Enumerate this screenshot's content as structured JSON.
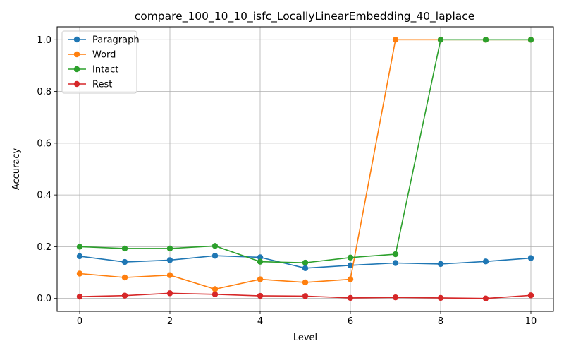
{
  "chart_data": {
    "type": "line",
    "title": "compare_100_10_10_isfc_LocallyLinearEmbedding_40_laplace",
    "xlabel": "Level",
    "ylabel": "Accuracy",
    "x": [
      0,
      1,
      2,
      3,
      4,
      5,
      6,
      7,
      8,
      9,
      10
    ],
    "xlim": [
      -0.5,
      10.5
    ],
    "ylim": [
      -0.05,
      1.05
    ],
    "xticks": [
      0,
      2,
      4,
      6,
      8,
      10
    ],
    "yticks": [
      0.0,
      0.2,
      0.4,
      0.6,
      0.8,
      1.0
    ],
    "xtick_labels": [
      "0",
      "2",
      "4",
      "6",
      "8",
      "10"
    ],
    "ytick_labels": [
      "0.0",
      "0.2",
      "0.4",
      "0.6",
      "0.8",
      "1.0"
    ],
    "grid": true,
    "legend_position": "top-left",
    "series": [
      {
        "name": "Paragraph",
        "color": "#1f77b4",
        "values": [
          0.163,
          0.141,
          0.148,
          0.165,
          0.159,
          0.117,
          0.128,
          0.137,
          0.133,
          0.143,
          0.156
        ]
      },
      {
        "name": "Word",
        "color": "#ff7f0e",
        "values": [
          0.096,
          0.081,
          0.09,
          0.036,
          0.074,
          0.062,
          0.074,
          1.0,
          1.0,
          1.0,
          1.0
        ]
      },
      {
        "name": "Intact",
        "color": "#2ca02c",
        "values": [
          0.2,
          0.193,
          0.193,
          0.203,
          0.142,
          0.138,
          0.158,
          0.171,
          1.0,
          1.0,
          1.0
        ]
      },
      {
        "name": "Rest",
        "color": "#d62728",
        "values": [
          0.007,
          0.011,
          0.02,
          0.016,
          0.01,
          0.009,
          0.002,
          0.004,
          0.002,
          0.0,
          0.012
        ]
      }
    ]
  }
}
